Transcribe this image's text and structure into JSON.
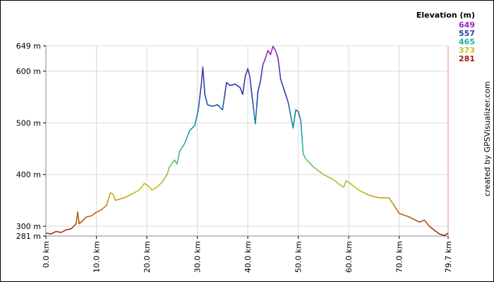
{
  "chart_data": {
    "type": "line",
    "xlabel": "",
    "ylabel": "",
    "x_unit": "km",
    "y_unit": "m",
    "xlim": [
      0,
      79.7
    ],
    "ylim": [
      281,
      649
    ],
    "x_ticks": [
      0,
      10,
      20,
      30,
      40,
      50,
      60,
      70,
      79.7
    ],
    "x_tick_labels": [
      "0.0 km",
      "10.0 km",
      "20.0 km",
      "30.0 km",
      "40.0 km",
      "50.0 km",
      "60.0 km",
      "70.0 km",
      "79.7 km"
    ],
    "y_ticks": [
      281,
      300,
      400,
      500,
      600,
      649
    ],
    "y_tick_labels": [
      "281 m",
      "300 m",
      "400 m",
      "500 m",
      "600 m",
      "649 m"
    ],
    "grid": true,
    "legend": {
      "title": "Elevation (m)",
      "position": "top-right",
      "entries": [
        {
          "label": "649",
          "color": "#a020c0"
        },
        {
          "label": "557",
          "color": "#1f3fa8"
        },
        {
          "label": "465",
          "color": "#10b8a8"
        },
        {
          "label": "373",
          "color": "#c8c010"
        },
        {
          "label": "281",
          "color": "#a02010"
        }
      ]
    },
    "credit": "created by GPSVisualizer.com",
    "series": [
      {
        "name": "",
        "x": [
          0,
          1,
          2,
          3,
          4,
          5,
          6,
          6.3,
          6.6,
          7,
          8,
          9,
          10,
          11,
          12,
          12.8,
          13.3,
          13.8,
          14.5,
          15.5,
          17,
          18.5,
          19.5,
          20.3,
          21,
          22,
          23,
          24,
          24.5,
          25.5,
          26,
          26.5,
          27.5,
          28.5,
          29.5,
          30.2,
          30.8,
          31.1,
          31.5,
          32,
          33,
          34,
          35,
          35.8,
          36.5,
          37.5,
          38.5,
          39,
          39.5,
          40,
          40.4,
          41,
          41.5,
          42,
          42.5,
          43,
          43.5,
          44,
          44.5,
          45,
          45.5,
          46,
          46.5,
          47,
          48,
          49,
          49.5,
          50,
          50.5,
          51,
          51.5,
          52,
          53,
          55,
          57,
          58,
          59,
          59.5,
          60,
          62,
          64,
          66,
          68,
          70,
          72,
          74,
          75,
          76,
          77,
          78,
          79,
          79.7
        ],
        "y": [
          287,
          285,
          290,
          288,
          293,
          295,
          305,
          328,
          305,
          308,
          318,
          320,
          327,
          332,
          340,
          365,
          362,
          350,
          352,
          355,
          362,
          370,
          383,
          378,
          370,
          375,
          385,
          400,
          415,
          428,
          420,
          445,
          460,
          485,
          495,
          525,
          575,
          608,
          555,
          535,
          532,
          535,
          525,
          578,
          572,
          575,
          568,
          555,
          590,
          605,
          590,
          540,
          498,
          560,
          580,
          612,
          625,
          640,
          632,
          648,
          640,
          625,
          585,
          570,
          540,
          490,
          525,
          522,
          505,
          440,
          430,
          425,
          415,
          400,
          390,
          382,
          375,
          388,
          385,
          370,
          360,
          355,
          355,
          325,
          318,
          308,
          312,
          300,
          292,
          285,
          282,
          287
        ]
      }
    ]
  }
}
